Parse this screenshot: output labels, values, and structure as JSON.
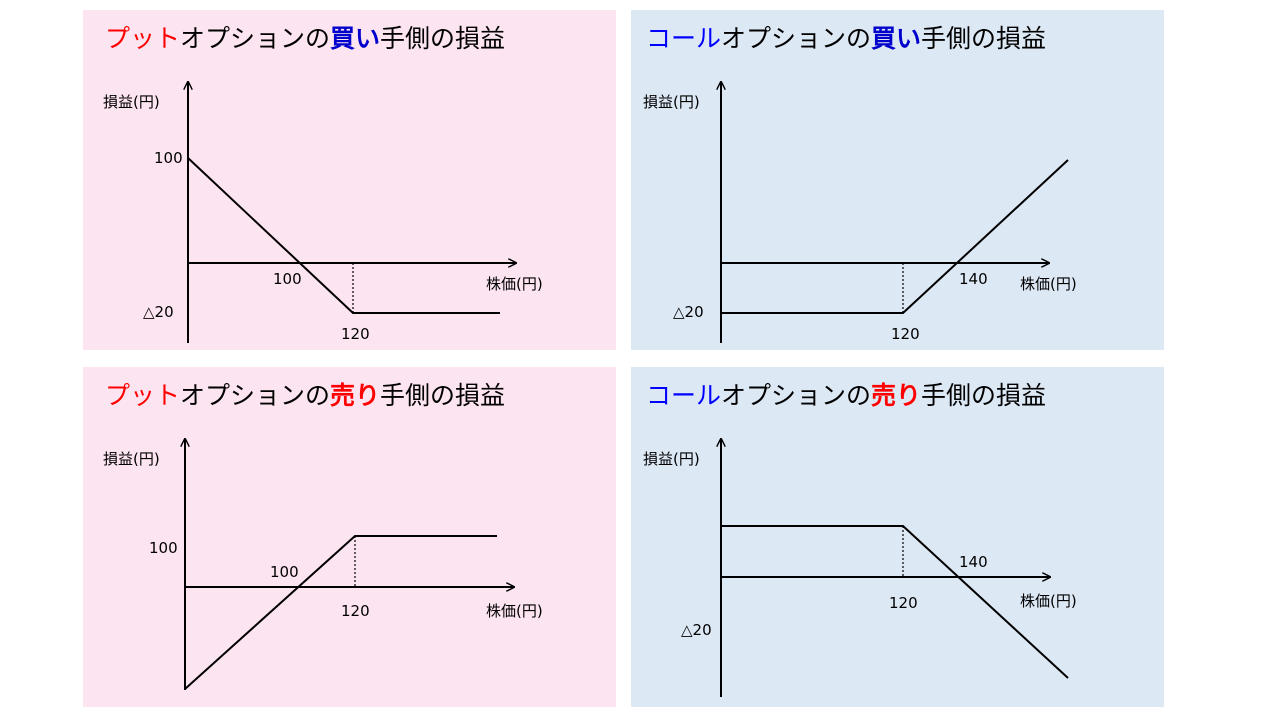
{
  "colors": {
    "put_panel_bg": "#fce4f0",
    "call_panel_bg": "#dde8f5",
    "put_word": "#ff0000",
    "call_word": "#0000ff",
    "buy_word": "#0000cc",
    "sell_word": "#ff0000",
    "line": "#000000"
  },
  "panels": [
    {
      "title": {
        "part1": "プット",
        "part2": "オプションの",
        "part3": "買い",
        "part4": "手側の損益"
      },
      "ylabel": "損益(円)",
      "xlabel": "株価(円)",
      "labels": {
        "profit_max": "100",
        "breakeven": "100",
        "loss_max": "△20",
        "strike": "120"
      }
    },
    {
      "title": {
        "part1": "コール",
        "part2": "オプションの",
        "part3": "買い",
        "part4": "手側の損益"
      },
      "ylabel": "損益(円)",
      "xlabel": "株価(円)",
      "labels": {
        "breakeven": "140",
        "loss_max": "△20",
        "strike": "120"
      }
    },
    {
      "title": {
        "part1": "プット",
        "part2": "オプションの",
        "part3": "売り",
        "part4": "手側の損益"
      },
      "ylabel": "損益(円)",
      "xlabel": "株価(円)",
      "labels": {
        "profit_max": "100",
        "breakeven": "100",
        "strike": "120"
      }
    },
    {
      "title": {
        "part1": "コール",
        "part2": "オプションの",
        "part3": "売り",
        "part4": "手側の損益"
      },
      "ylabel": "損益(円)",
      "xlabel": "株価(円)",
      "labels": {
        "breakeven": "140",
        "strike": "120",
        "loss_max": "△20"
      }
    }
  ]
}
